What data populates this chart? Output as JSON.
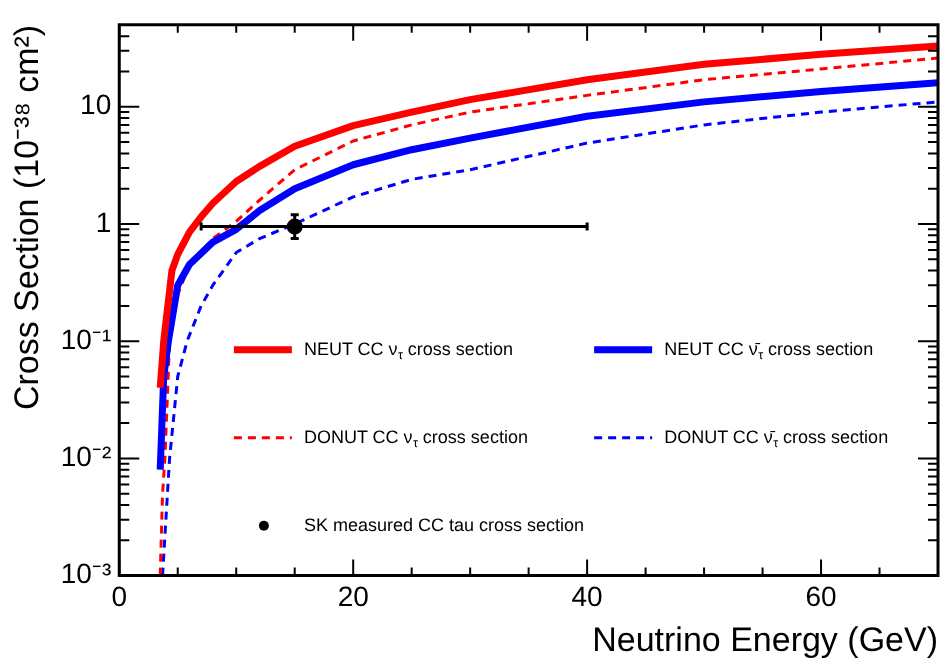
{
  "chart_data": {
    "type": "line",
    "xlabel": "Neutrino Energy (GeV)",
    "ylabel": "Cross Section (10⁻³⁸ cm²)",
    "log": "y",
    "grid": false,
    "legend": "center",
    "marker": "none",
    "xlim": [
      0,
      70
    ],
    "ylim": [
      0.001,
      50
    ],
    "xticks": [
      0,
      {
        "value": 5,
        "label": null
      },
      {
        "value": 10,
        "label": null
      },
      {
        "value": 15,
        "label": null
      },
      20,
      {
        "value": 25,
        "label": null
      },
      {
        "value": 30,
        "label": null
      },
      {
        "value": 35,
        "label": null
      },
      40,
      {
        "value": 45,
        "label": null
      },
      {
        "value": 50,
        "label": null
      },
      {
        "value": 55,
        "label": null
      },
      60,
      {
        "value": 65,
        "label": null
      }
    ],
    "yticks": [
      {
        "value": 0.001,
        "label": "10⁻³"
      },
      {
        "value": 0.002,
        "label": null
      },
      {
        "value": 0.003,
        "label": null
      },
      {
        "value": 0.004,
        "label": null
      },
      {
        "value": 0.005,
        "label": null
      },
      {
        "value": 0.006,
        "label": null
      },
      {
        "value": 0.007,
        "label": null
      },
      {
        "value": 0.008,
        "label": null
      },
      {
        "value": 0.009,
        "label": null
      },
      {
        "value": 0.01,
        "label": "10⁻²"
      },
      {
        "value": 0.02,
        "label": null
      },
      {
        "value": 0.03,
        "label": null
      },
      {
        "value": 0.04,
        "label": null
      },
      {
        "value": 0.05,
        "label": null
      },
      {
        "value": 0.06,
        "label": null
      },
      {
        "value": 0.07,
        "label": null
      },
      {
        "value": 0.08,
        "label": null
      },
      {
        "value": 0.09,
        "label": null
      },
      {
        "value": 0.1,
        "label": "10⁻¹"
      },
      {
        "value": 0.2,
        "label": null
      },
      {
        "value": 0.3,
        "label": null
      },
      {
        "value": 0.4,
        "label": null
      },
      {
        "value": 0.5,
        "label": null
      },
      {
        "value": 0.6,
        "label": null
      },
      {
        "value": 0.7,
        "label": null
      },
      {
        "value": 0.8,
        "label": null
      },
      {
        "value": 0.9,
        "label": null
      },
      1,
      {
        "value": 2,
        "label": null
      },
      {
        "value": 3,
        "label": null
      },
      {
        "value": 4,
        "label": null
      },
      {
        "value": 5,
        "label": null
      },
      {
        "value": 6,
        "label": null
      },
      {
        "value": 7,
        "label": null
      },
      {
        "value": 8,
        "label": null
      },
      {
        "value": 9,
        "label": null
      },
      10,
      {
        "value": 20,
        "label": null
      },
      {
        "value": 30,
        "label": null
      },
      {
        "value": 40,
        "label": null
      }
    ],
    "series": [
      {
        "name": "NEUT CC ν$_{τ}$ cross section",
        "color": "#ff0000",
        "line_style": "solid",
        "x": [
          3.5,
          3.8,
          4.5,
          5,
          6,
          7,
          8,
          10,
          12,
          15,
          20,
          25,
          30,
          40,
          50,
          60,
          70
        ],
        "values": [
          0.04,
          0.1,
          0.4,
          0.55,
          0.85,
          1.15,
          1.5,
          2.3,
          3.1,
          4.6,
          6.9,
          9,
          11.5,
          17,
          23,
          28,
          33
        ]
      },
      {
        "name": "NEUT CC ν̄$_{τ}$ cross section",
        "color": "#0000ff",
        "line_style": "solid",
        "x": [
          3.5,
          3.8,
          4.2,
          5,
          6,
          8,
          10,
          12,
          15,
          20,
          25,
          30,
          40,
          50,
          60,
          70
        ],
        "values": [
          0.008,
          0.05,
          0.1,
          0.3,
          0.45,
          0.7,
          0.9,
          1.3,
          2,
          3.2,
          4.3,
          5.4,
          8.3,
          11,
          13.5,
          16
        ]
      },
      {
        "name": "DONUT CC ν$_{τ}$ cross section",
        "color": "#ff0000",
        "line_style": "dashed",
        "x": [
          3.5,
          3.7,
          3.9,
          4.3,
          5,
          6,
          8,
          10,
          12,
          15,
          20,
          25,
          30,
          40,
          50,
          60,
          70
        ],
        "values": [
          0.001,
          0.005,
          0.01,
          0.1,
          0.25,
          0.45,
          0.75,
          1.05,
          1.6,
          2.9,
          5.1,
          7,
          9,
          12.5,
          17,
          21,
          26
        ]
      },
      {
        "name": "DONUT CC ν̄$_{τ}$ cross section",
        "color": "#0000ff",
        "line_style": "dashed",
        "x": [
          3.7,
          4.3,
          5,
          5.8,
          7,
          8,
          10,
          12,
          15,
          20,
          25,
          30,
          40,
          50,
          60,
          70
        ],
        "values": [
          0.001,
          0.01,
          0.05,
          0.1,
          0.2,
          0.3,
          0.57,
          0.75,
          1,
          1.7,
          2.4,
          2.9,
          4.9,
          7,
          9,
          11
        ]
      },
      {
        "name": "SK measured CC tau cross section",
        "type": "scatter",
        "marker": "circle",
        "color": "#000000",
        "x": [
          15
        ],
        "values": [
          0.95
        ],
        "errors": [
          [
            0.75,
            1.2
          ]
        ],
        "xerrors": [
          [
            7,
            40
          ]
        ]
      }
    ]
  }
}
